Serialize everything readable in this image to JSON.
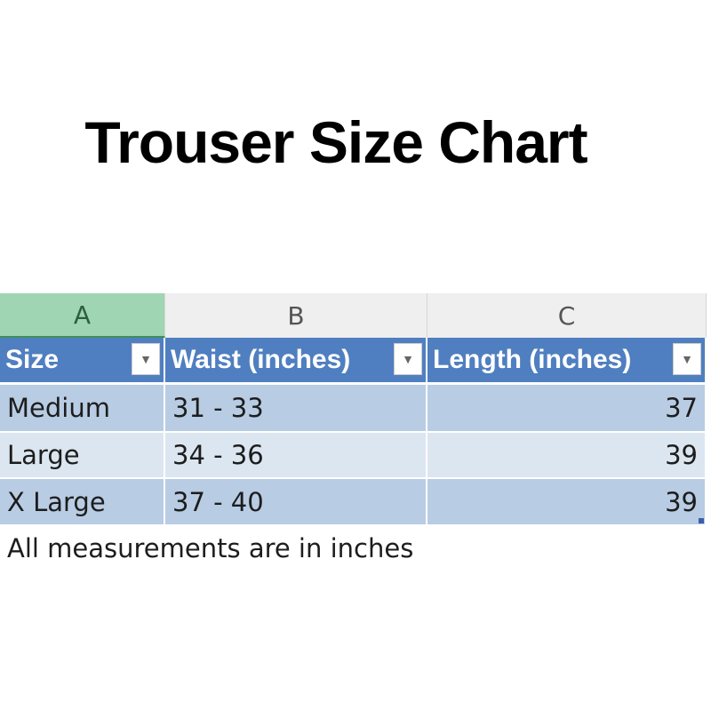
{
  "title": "Trouser Size Chart",
  "columns": [
    "A",
    "B",
    "C"
  ],
  "headers": [
    "Size",
    "Waist (inches)",
    "Length (inches)"
  ],
  "rows": [
    {
      "size": "Medium",
      "waist": "31 - 33",
      "length": "37"
    },
    {
      "size": "Large",
      "waist": "34 - 36",
      "length": "39"
    },
    {
      "size": "X Large",
      "waist": "37 - 40",
      "length": "39"
    }
  ],
  "footer_note": "All measurements are in inches",
  "icons": {
    "filter": "dropdown-arrow-icon"
  },
  "colors": {
    "header": "#4f7fc0",
    "band_dark": "#b8cce4",
    "band_light": "#dce6f1",
    "selected_column": "#9fd5b3"
  }
}
